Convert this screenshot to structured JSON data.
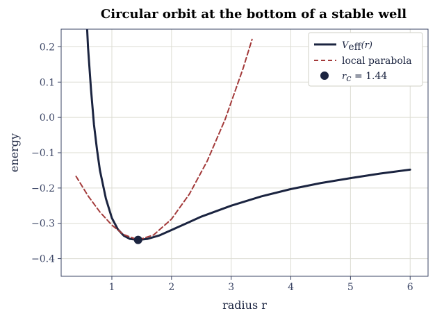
{
  "chart_data": {
    "type": "line",
    "title": "Circular orbit at the bottom of a stable well",
    "xlabel": "radius  r",
    "ylabel": "energy",
    "xlim": [
      0.15,
      6.3
    ],
    "ylim": [
      -0.45,
      0.25
    ],
    "grid": true,
    "legend_position": "top-right",
    "x_ticks": [
      1,
      2,
      3,
      4,
      5,
      6
    ],
    "x_tick_labels": [
      "1",
      "2",
      "3",
      "4",
      "5",
      "6"
    ],
    "y_ticks": [
      0.2,
      0.1,
      0.0,
      -0.1,
      -0.2,
      -0.3,
      -0.4
    ],
    "y_tick_labels": [
      "0.2",
      "0.1",
      "0.0",
      "−0.1",
      "−0.2",
      "−0.3",
      "−0.4"
    ],
    "series": [
      {
        "name": "V_eff(r)",
        "style": "solid",
        "color": "#1b2440",
        "x": [
          0.58,
          0.6,
          0.65,
          0.7,
          0.75,
          0.8,
          0.9,
          1.0,
          1.1,
          1.2,
          1.3,
          1.44,
          1.6,
          1.8,
          2.0,
          2.25,
          2.5,
          3.0,
          3.5,
          4.0,
          4.5,
          5.0,
          5.5,
          6.0
        ],
        "y": [
          0.27,
          0.2,
          0.08,
          -0.02,
          -0.09,
          -0.15,
          -0.23,
          -0.285,
          -0.317,
          -0.335,
          -0.344,
          -0.347,
          -0.344,
          -0.334,
          -0.319,
          -0.3,
          -0.281,
          -0.25,
          -0.224,
          -0.203,
          -0.186,
          -0.172,
          -0.159,
          -0.148
        ]
      },
      {
        "name": "local parabola",
        "style": "dashed",
        "color": "#a33a3a",
        "x": [
          0.4,
          0.6,
          0.8,
          1.0,
          1.2,
          1.44,
          1.7,
          2.0,
          2.3,
          2.6,
          2.9,
          3.2,
          3.35
        ],
        "y": [
          -0.167,
          -0.222,
          -0.268,
          -0.305,
          -0.332,
          -0.347,
          -0.333,
          -0.288,
          -0.217,
          -0.123,
          -0.005,
          0.139,
          0.221
        ]
      }
    ],
    "points": [
      {
        "name": "r_c = 1.44",
        "x": 1.44,
        "y": -0.347,
        "color": "#1b2440"
      }
    ]
  },
  "legend": {
    "items": [
      {
        "label": "V",
        "sub": "eff",
        "suffix": "(r)"
      },
      {
        "label": "local parabola"
      },
      {
        "label": "r",
        "sub": "c",
        "suffix": " = 1.44"
      }
    ]
  }
}
